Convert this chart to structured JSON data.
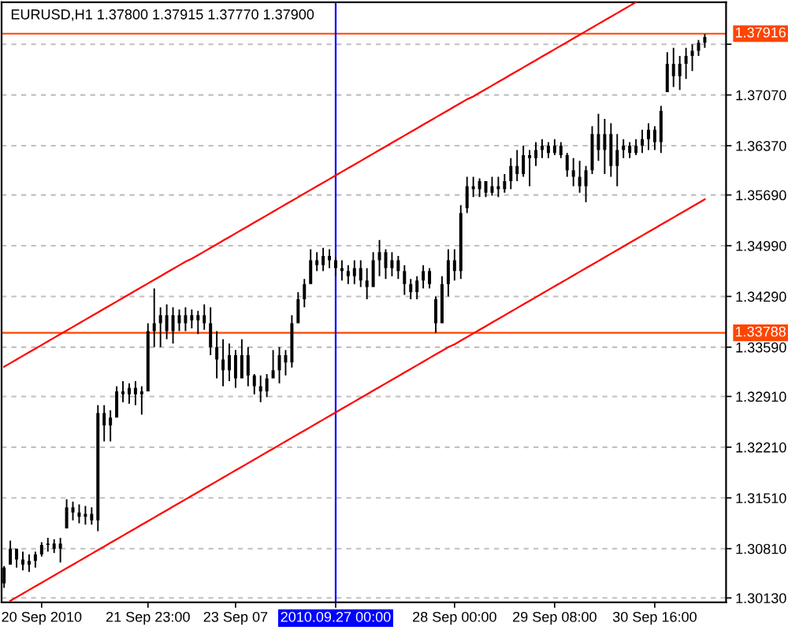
{
  "chart_data": {
    "type": "candlestick",
    "title": "EURUSD,H1 1.37800 1.37915 1.37770 1.37900",
    "color": "#000000",
    "categories": [
      null,
      null,
      null,
      null,
      null,
      null,
      "20 Sep 2010",
      null,
      null,
      null,
      null,
      null,
      null,
      null,
      null,
      null,
      null,
      null,
      null,
      null,
      null,
      null,
      null,
      "21 Sep 23:00",
      null,
      null,
      null,
      null,
      null,
      null,
      null,
      null,
      null,
      null,
      null,
      null,
      null,
      "23 Sep 07",
      null,
      null,
      null,
      null,
      null,
      null,
      null,
      null,
      null,
      null,
      null,
      null,
      null,
      null,
      null,
      "2010.09.27 00:00",
      null,
      null,
      null,
      null,
      null,
      null,
      null,
      null,
      null,
      null,
      null,
      null,
      null,
      null,
      null,
      null,
      null,
      null,
      "28 Sep 00:00",
      null,
      null,
      null,
      null,
      null,
      null,
      null,
      null,
      null,
      null,
      null,
      null,
      null,
      null,
      null,
      "29 Sep 08:00",
      null,
      null,
      null,
      null,
      null,
      null,
      null,
      null,
      null,
      null,
      null,
      null,
      null,
      null,
      null,
      "30 Sep 16:00",
      null,
      null,
      null,
      null,
      null,
      null,
      null,
      null
    ],
    "ohlc": [
      [
        1.3033,
        1.3057,
        1.3027,
        1.3055
      ],
      [
        1.3059,
        1.3092,
        1.3059,
        1.3081
      ],
      [
        1.3081,
        1.3081,
        1.3055,
        1.3066
      ],
      [
        1.3066,
        1.3077,
        1.3051,
        1.3059
      ],
      [
        1.3059,
        1.3073,
        1.3049,
        1.3064
      ],
      [
        1.3064,
        1.3077,
        1.3055,
        1.3073
      ],
      [
        1.3073,
        1.309,
        1.307,
        1.3086
      ],
      [
        1.3086,
        1.3096,
        1.3077,
        1.3088
      ],
      [
        1.3088,
        1.3094,
        1.3075,
        1.3081
      ],
      [
        1.3081,
        1.3096,
        1.3062,
        1.3088
      ],
      [
        1.3109,
        1.3149,
        1.3109,
        1.3138
      ],
      [
        1.3138,
        1.3146,
        1.312,
        1.3131
      ],
      [
        1.3131,
        1.3142,
        1.3116,
        1.3125
      ],
      [
        1.3125,
        1.314,
        1.3114,
        1.3129
      ],
      [
        1.3129,
        1.3138,
        1.3114,
        1.312
      ],
      [
        1.312,
        1.3279,
        1.3105,
        1.3268
      ],
      [
        1.3268,
        1.3279,
        1.3229,
        1.3251
      ],
      [
        1.3251,
        1.3272,
        1.3229,
        1.3262
      ],
      [
        1.3262,
        1.3305,
        1.3262,
        1.3298
      ],
      [
        1.3298,
        1.3312,
        1.3283,
        1.3294
      ],
      [
        1.3294,
        1.3309,
        1.3281,
        1.3303
      ],
      [
        1.3303,
        1.3312,
        1.3279,
        1.3294
      ],
      [
        1.3294,
        1.3305,
        1.3266,
        1.3298
      ],
      [
        1.3298,
        1.3392,
        1.3298,
        1.3381
      ],
      [
        1.3381,
        1.344,
        1.3359,
        1.3392
      ],
      [
        1.3392,
        1.3414,
        1.3359,
        1.3403
      ],
      [
        1.3403,
        1.3418,
        1.337,
        1.3381
      ],
      [
        1.3381,
        1.3414,
        1.3364,
        1.3403
      ],
      [
        1.3403,
        1.3411,
        1.3381,
        1.3392
      ],
      [
        1.3392,
        1.3414,
        1.3381,
        1.3403
      ],
      [
        1.3403,
        1.3411,
        1.3385,
        1.3396
      ],
      [
        1.3396,
        1.3409,
        1.3377,
        1.3403
      ],
      [
        1.3403,
        1.3418,
        1.3383,
        1.3392
      ],
      [
        1.3392,
        1.3414,
        1.3348,
        1.3359
      ],
      [
        1.3359,
        1.3381,
        1.3316,
        1.3342
      ],
      [
        1.3342,
        1.337,
        1.3305,
        1.3327
      ],
      [
        1.3327,
        1.3364,
        1.3312,
        1.3348
      ],
      [
        1.3348,
        1.3355,
        1.3303,
        1.3316
      ],
      [
        1.3316,
        1.337,
        1.3316,
        1.3348
      ],
      [
        1.3348,
        1.3359,
        1.3305,
        1.332
      ],
      [
        1.332,
        1.3322,
        1.3294,
        1.3305
      ],
      [
        1.3305,
        1.332,
        1.3283,
        1.3298
      ],
      [
        1.3298,
        1.3322,
        1.329,
        1.3316
      ],
      [
        1.3316,
        1.3355,
        1.3316,
        1.3327
      ],
      [
        1.3327,
        1.3359,
        1.3309,
        1.3348
      ],
      [
        1.3348,
        1.3355,
        1.332,
        1.3338
      ],
      [
        1.3338,
        1.3403,
        1.3331,
        1.3392
      ],
      [
        1.3392,
        1.3435,
        1.3392,
        1.3425
      ],
      [
        1.3425,
        1.3453,
        1.3414,
        1.3446
      ],
      [
        1.3446,
        1.3494,
        1.3446,
        1.3479
      ],
      [
        1.3479,
        1.349,
        1.3464,
        1.3472
      ],
      [
        1.3472,
        1.3496,
        1.3464,
        1.3485
      ],
      [
        1.3485,
        1.3494,
        1.3468,
        1.3479
      ],
      [
        1.3479,
        1.3483,
        1.3457,
        1.3468
      ],
      [
        1.3468,
        1.3479,
        1.3451,
        1.3464
      ],
      [
        1.3464,
        1.3472,
        1.3446,
        1.3457
      ],
      [
        1.3457,
        1.3479,
        1.3446,
        1.3468
      ],
      [
        1.3468,
        1.3479,
        1.3442,
        1.3451
      ],
      [
        1.3451,
        1.3468,
        1.3425,
        1.3442
      ],
      [
        1.3442,
        1.349,
        1.3442,
        1.3479
      ],
      [
        1.3479,
        1.3507,
        1.3457,
        1.349
      ],
      [
        1.349,
        1.3494,
        1.3453,
        1.3468
      ],
      [
        1.3468,
        1.349,
        1.3457,
        1.3479
      ],
      [
        1.3479,
        1.3485,
        1.3453,
        1.3464
      ],
      [
        1.3464,
        1.3472,
        1.3431,
        1.3446
      ],
      [
        1.3446,
        1.3453,
        1.3425,
        1.3435
      ],
      [
        1.3435,
        1.3457,
        1.3425,
        1.3451
      ],
      [
        1.3451,
        1.3472,
        1.344,
        1.3464
      ],
      [
        1.3464,
        1.3468,
        1.344,
        1.3446
      ],
      [
        1.3425,
        1.3429,
        1.3379,
        1.3392
      ],
      [
        1.3392,
        1.3457,
        1.3392,
        1.3446
      ],
      [
        1.3446,
        1.3494,
        1.3429,
        1.3479
      ],
      [
        1.3479,
        1.3494,
        1.3451,
        1.3464
      ],
      [
        1.3464,
        1.3555,
        1.3453,
        1.3544
      ],
      [
        1.3551,
        1.3594,
        1.3544,
        1.3581
      ],
      [
        1.3581,
        1.3594,
        1.3566,
        1.3577
      ],
      [
        1.3577,
        1.3592,
        1.3566,
        1.3588
      ],
      [
        1.3588,
        1.3588,
        1.3566,
        1.3572
      ],
      [
        1.3572,
        1.3594,
        1.3568,
        1.3581
      ],
      [
        1.3581,
        1.3594,
        1.3566,
        1.3577
      ],
      [
        1.3577,
        1.3598,
        1.3572,
        1.3588
      ],
      [
        1.3588,
        1.362,
        1.3577,
        1.3609
      ],
      [
        1.3609,
        1.3631,
        1.3588,
        1.3598
      ],
      [
        1.3598,
        1.3637,
        1.3594,
        1.3624
      ],
      [
        1.3624,
        1.3631,
        1.3581,
        1.362
      ],
      [
        1.362,
        1.3642,
        1.3609,
        1.3631
      ],
      [
        1.3631,
        1.3646,
        1.362,
        1.3637
      ],
      [
        1.3637,
        1.3642,
        1.362,
        1.3627
      ],
      [
        1.3627,
        1.3646,
        1.3624,
        1.3637
      ],
      [
        1.3637,
        1.3642,
        1.362,
        1.3624
      ],
      [
        1.3624,
        1.3627,
        1.3594,
        1.3603
      ],
      [
        1.3603,
        1.362,
        1.3581,
        1.3594
      ],
      [
        1.3594,
        1.3616,
        1.3572,
        1.3581
      ],
      [
        1.3581,
        1.3609,
        1.3559,
        1.3603
      ],
      [
        1.3603,
        1.3664,
        1.3598,
        1.3653
      ],
      [
        1.3653,
        1.3681,
        1.3616,
        1.3631
      ],
      [
        1.3631,
        1.3674,
        1.3598,
        1.3653
      ],
      [
        1.3653,
        1.3668,
        1.3594,
        1.3609
      ],
      [
        1.3609,
        1.3653,
        1.3581,
        1.3631
      ],
      [
        1.3631,
        1.3646,
        1.362,
        1.3637
      ],
      [
        1.3637,
        1.3642,
        1.362,
        1.3627
      ],
      [
        1.3627,
        1.3646,
        1.3624,
        1.3637
      ],
      [
        1.3637,
        1.3659,
        1.3627,
        1.3646
      ],
      [
        1.3646,
        1.3668,
        1.3631,
        1.3659
      ],
      [
        1.3659,
        1.3664,
        1.3631,
        1.3642
      ],
      [
        1.3642,
        1.3692,
        1.3627,
        1.3685
      ],
      [
        1.3711,
        1.3766,
        1.3711,
        1.375
      ],
      [
        1.375,
        1.3772,
        1.3718,
        1.3733
      ],
      [
        1.3733,
        1.3761,
        1.3714,
        1.375
      ],
      [
        1.375,
        1.3772,
        1.3729,
        1.3761
      ],
      [
        1.3761,
        1.3777,
        1.374,
        1.3768
      ],
      [
        1.3768,
        1.3783,
        1.3761,
        1.3779
      ],
      [
        1.3779,
        1.3791,
        1.3772,
        1.3787
      ]
    ],
    "series": [
      {
        "type": "line",
        "color": "#ff0000",
        "values": [
          1.3332,
          1.3337,
          1.3342,
          1.3347,
          1.3352,
          1.3357,
          1.3362,
          1.3367,
          1.3372,
          1.3377,
          1.3382,
          1.3387,
          1.3392,
          1.3397,
          1.3402,
          1.3407,
          1.3412,
          1.3417,
          1.3422,
          1.3427,
          1.3432,
          1.3437,
          1.3442,
          1.3447,
          1.3452,
          1.3457,
          1.3462,
          1.3467,
          1.3472,
          1.3477,
          1.3481,
          1.3486,
          1.3491,
          1.3496,
          1.3501,
          1.3506,
          1.3511,
          1.3516,
          1.3521,
          1.3526,
          1.3531,
          1.3536,
          1.3541,
          1.3546,
          1.3551,
          1.3556,
          1.3561,
          1.3566,
          1.3571,
          1.3576,
          1.3581,
          1.3586,
          1.3591,
          1.3596,
          1.3601,
          1.3606,
          1.3611,
          1.3616,
          1.3621,
          1.3626,
          1.3631,
          1.3636,
          1.3641,
          1.3646,
          1.3651,
          1.3656,
          1.3661,
          1.3666,
          1.3671,
          1.3676,
          1.3681,
          1.3686,
          1.3691,
          1.3696,
          1.3701,
          1.3705,
          1.371,
          1.3715,
          1.372,
          1.3725,
          1.373,
          1.3735,
          1.374,
          1.3745,
          1.375,
          1.3755,
          1.376,
          1.3765,
          1.377,
          1.3775,
          1.378,
          1.3785,
          1.379,
          1.3795,
          1.38,
          1.3805,
          1.381,
          1.3815,
          1.382,
          1.3825,
          1.383,
          1.3835,
          null,
          null,
          null,
          null,
          null,
          null,
          null,
          null,
          null,
          null,
          null
        ]
      },
      {
        "type": "line",
        "color": "#ff0000",
        "values": [
          null,
          1.3009,
          1.3014,
          1.3019,
          1.3024,
          1.3029,
          1.3034,
          1.3039,
          1.3044,
          1.3049,
          1.3054,
          1.3059,
          1.3064,
          1.3069,
          1.3074,
          1.3079,
          1.3084,
          1.3089,
          1.3094,
          1.3099,
          1.3104,
          1.3109,
          1.3114,
          1.3119,
          1.3124,
          1.3129,
          1.3134,
          1.3139,
          1.3144,
          1.3149,
          1.3154,
          1.3159,
          1.3164,
          1.3169,
          1.3174,
          1.3179,
          1.3184,
          1.3189,
          1.3194,
          1.3199,
          1.3204,
          1.3209,
          1.3214,
          1.3219,
          1.3224,
          1.3229,
          1.3234,
          1.3239,
          1.3244,
          1.3249,
          1.3254,
          1.3259,
          1.3264,
          1.3269,
          1.3274,
          1.3279,
          1.3284,
          1.3289,
          1.3294,
          1.3299,
          1.3304,
          1.3309,
          1.3314,
          1.3319,
          1.3324,
          1.3329,
          1.3334,
          1.3339,
          1.3344,
          1.3349,
          1.3354,
          1.3359,
          1.3363,
          1.3368,
          1.3373,
          1.3378,
          1.3383,
          1.3388,
          1.3393,
          1.3398,
          1.3403,
          1.3408,
          1.3413,
          1.3418,
          1.3423,
          1.3428,
          1.3433,
          1.3438,
          1.3443,
          1.3448,
          1.3453,
          1.3458,
          1.3463,
          1.3468,
          1.3473,
          1.3478,
          1.3483,
          1.3488,
          1.3493,
          1.3498,
          1.3503,
          1.3508,
          1.3513,
          1.3518,
          1.3523,
          1.3528,
          1.3533,
          1.3538,
          1.3543,
          1.3548,
          1.3553,
          1.3558,
          1.3563
        ]
      }
    ],
    "ylim": [
      1.3007,
      1.3835
    ],
    "yticks": [
      {
        "value": 1.3013,
        "label": "1.30130"
      },
      {
        "value": 1.3081,
        "label": "1.30810"
      },
      {
        "value": 1.3151,
        "label": "1.31510"
      },
      {
        "value": 1.3221,
        "label": "1.32210"
      },
      {
        "value": 1.3291,
        "label": "1.32910"
      },
      {
        "value": 1.3359,
        "label": "1.33590"
      },
      {
        "value": 1.3429,
        "label": "1.34290"
      },
      {
        "value": 1.3499,
        "label": "1.34990"
      },
      {
        "value": 1.3569,
        "label": "1.35690"
      },
      {
        "value": 1.3637,
        "label": "1.36370"
      },
      {
        "value": 1.3707,
        "label": "1.37070"
      },
      {
        "value": 1.3777,
        "label": null
      }
    ],
    "grid": "y",
    "ref_lines": [
      {
        "axis": "y",
        "value": 1.37916,
        "label": "1.37916",
        "color": "#ff4500"
      },
      {
        "axis": "y",
        "value": 1.33788,
        "label": "1.33788",
        "color": "#ff4500"
      },
      {
        "axis": "x",
        "value": "2010.09.27 00:00",
        "color": "#0000ff"
      }
    ]
  }
}
